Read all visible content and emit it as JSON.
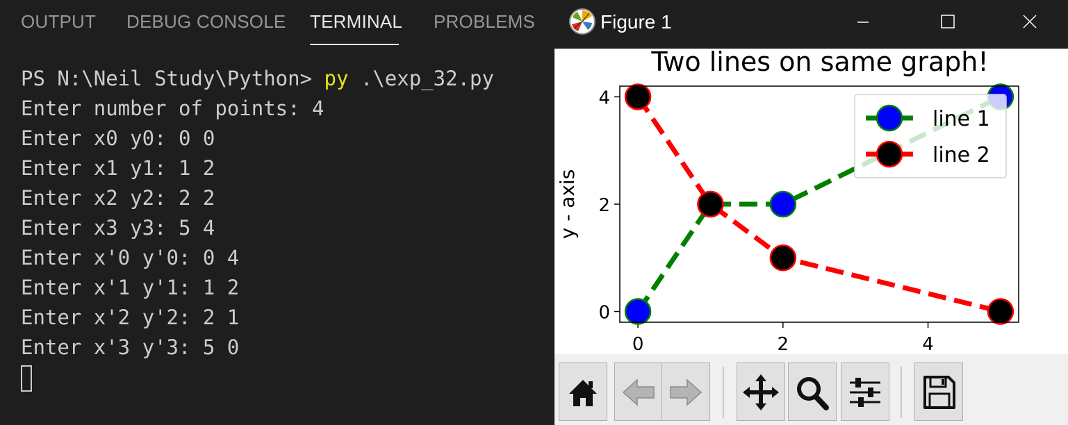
{
  "panel": {
    "tabs": [
      {
        "label": "OUTPUT",
        "active": false
      },
      {
        "label": "DEBUG CONSOLE",
        "active": false
      },
      {
        "label": "TERMINAL",
        "active": true
      },
      {
        "label": "PROBLEMS",
        "active": false
      }
    ]
  },
  "terminal": {
    "prompt": "PS N:\\Neil Study\\Python> ",
    "command_exe": "py",
    "command_args": " .\\exp_32.py",
    "lines": [
      "Enter number of points: 4",
      "Enter x0 y0: 0 0",
      "Enter x1 y1: 1 2",
      "Enter x2 y2: 2 2",
      "Enter x3 y3: 5 4",
      "Enter x'0 y'0: 0 4",
      "Enter x'1 y'1: 1 2",
      "Enter x'2 y'2: 2 1",
      "Enter x'3 y'3: 5 0"
    ]
  },
  "figure": {
    "title": "Figure 1",
    "toolbar": [
      "home-icon",
      "back-arrow-icon",
      "forward-arrow-icon",
      "pan-icon",
      "zoom-icon",
      "configure-subplots-icon",
      "save-icon"
    ]
  },
  "chart_data": {
    "type": "line",
    "title": "Two lines on same graph!",
    "xlabel": "",
    "ylabel": "y - axis",
    "xlim": [
      -0.25,
      5.25
    ],
    "ylim": [
      -0.2,
      4.2
    ],
    "xticks": [
      0,
      2,
      4
    ],
    "yticks": [
      0,
      2,
      4
    ],
    "grid": false,
    "legend": "top-right",
    "series": [
      {
        "name": "line 1",
        "x": [
          0,
          1,
          2,
          5
        ],
        "y": [
          0,
          2,
          2,
          4
        ],
        "line_color": "#008000",
        "marker_color": "#0000ff",
        "line_style": "dashed"
      },
      {
        "name": "line 2",
        "x": [
          0,
          1,
          2,
          5
        ],
        "y": [
          4,
          2,
          1,
          0
        ],
        "line_color": "#ff0000",
        "marker_color": "#000000",
        "line_style": "dashed"
      }
    ]
  }
}
